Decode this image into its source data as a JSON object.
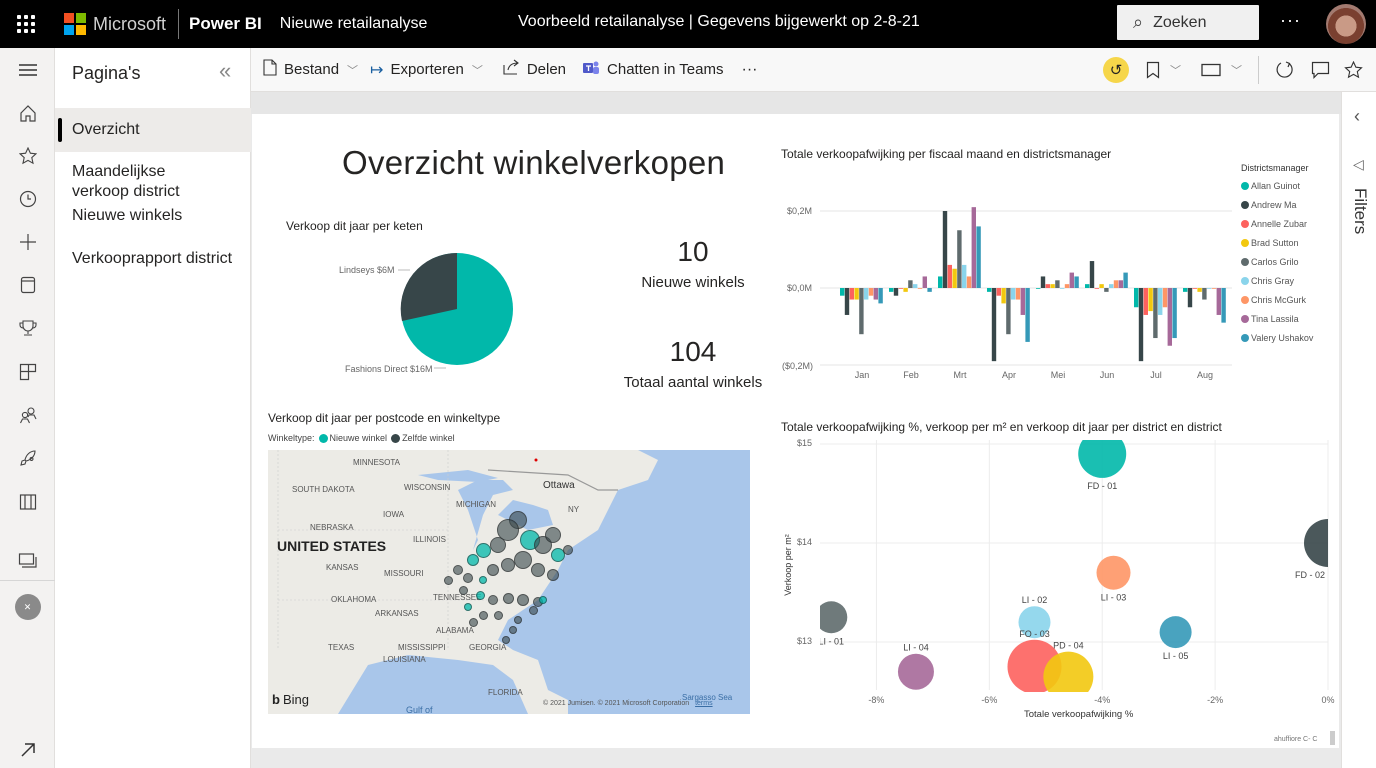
{
  "topbar": {
    "brand": "Microsoft",
    "product": "Power BI",
    "report_name": "Nieuwe retailanalyse",
    "center_title": "Voorbeeld retailanalyse  |  Gegevens bijgewerkt op 2-8-21",
    "search_placeholder": "Zoeken",
    "more": "···"
  },
  "rail": {
    "items": [
      "menu-icon",
      "home-icon",
      "star-icon",
      "clock-icon",
      "plus-icon",
      "database-icon",
      "trophy-icon",
      "dashboard-icon",
      "people-icon",
      "rocket-icon",
      "book-icon",
      "workspaces-icon",
      "workspace-avatar-icon"
    ],
    "expand": "expand-icon"
  },
  "pages": {
    "title": "Pagina's",
    "items": [
      {
        "label": "Overzicht",
        "active": true
      },
      {
        "label": "Maandelijkse verkoop district"
      },
      {
        "label": "Nieuwe winkels"
      },
      {
        "label": "Verkooprapport district"
      }
    ]
  },
  "actionbar": {
    "file": "Bestand",
    "export": "Exporteren",
    "share": "Delen",
    "teams": "Chatten in Teams",
    "more": "···"
  },
  "filters": {
    "label": "Filters"
  },
  "report": {
    "title": "Overzicht winkelverkopen",
    "kpi": [
      {
        "value": "10",
        "label": "Nieuwe winkels"
      },
      {
        "value": "104",
        "label": "Totaal aantal winkels"
      }
    ],
    "map": {
      "title": "Verkoop dit jaar per postcode en winkeltype",
      "legend_title": "Winkeltype:",
      "legend": [
        {
          "label": "Nieuwe winkel",
          "color": "#01B8AA"
        },
        {
          "label": "Zelfde winkel",
          "color": "#374649"
        }
      ],
      "labels": [
        "MINNESOTA",
        "SOUTH DAKOTA",
        "WISCONSIN",
        "MICHIGAN",
        "IOWA",
        "NEBRASKA",
        "UNITED STATES",
        "ILLINOIS",
        "KANSAS",
        "MISSOURI",
        "OKLAHOMA",
        "ARKANSAS",
        "TENNESSEE",
        "ALABAMA",
        "TEXAS",
        "MISSISSIPPI",
        "GEORGIA",
        "LOUISIANA",
        "FLORIDA",
        "Ottawa",
        "NY",
        "Gulf of",
        "Sargasso Sea"
      ],
      "bing": "Bing",
      "copyright": "© 2021 Jumisen. © 2021 Microsoft Corporation",
      "terms": "terms"
    },
    "footer_tag": "ahuffiore C- C"
  },
  "chart_data": [
    {
      "type": "pie",
      "title": "Verkoop dit jaar per keten",
      "categories": [
        "Fashions Direct",
        "Lindseys"
      ],
      "values": [
        16,
        6
      ],
      "labels": [
        "Fashions Direct $16M",
        "Lindseys $6M"
      ],
      "colors": [
        "#01B8AA",
        "#374649"
      ],
      "unit": "$M"
    },
    {
      "type": "bar",
      "title": "Totale verkoopafwijking per fiscaal maand en districtsmanager",
      "categories": [
        "Jan",
        "Feb",
        "Mrt",
        "Apr",
        "Mei",
        "Jun",
        "Jul",
        "Aug"
      ],
      "yticks": [
        "$0,2M",
        "$0,0M",
        "($0,2M)"
      ],
      "ylim": [
        -0.2,
        0.2
      ],
      "legend_title": "Districtsmanager",
      "legend_position": "right",
      "series": [
        {
          "name": "Allan Guinot",
          "color": "#01B8AA",
          "values": [
            -0.02,
            -0.01,
            0.03,
            -0.01,
            0.0,
            0.01,
            -0.05,
            -0.01
          ]
        },
        {
          "name": "Andrew Ma",
          "color": "#374649",
          "values": [
            -0.07,
            -0.02,
            0.2,
            -0.19,
            0.03,
            0.07,
            -0.19,
            -0.05
          ]
        },
        {
          "name": "Annelle Zubar",
          "color": "#FD625E",
          "values": [
            -0.03,
            0.0,
            0.06,
            -0.02,
            0.01,
            0.0,
            -0.07,
            0.0
          ]
        },
        {
          "name": "Brad Sutton",
          "color": "#F2C80F",
          "values": [
            -0.03,
            -0.01,
            0.05,
            -0.04,
            0.01,
            0.01,
            -0.06,
            -0.01
          ]
        },
        {
          "name": "Carlos Grilo",
          "color": "#5F6B6D",
          "values": [
            -0.12,
            0.02,
            0.15,
            -0.12,
            0.02,
            -0.01,
            -0.13,
            -0.03
          ]
        },
        {
          "name": "Chris Gray",
          "color": "#8AD4EB",
          "values": [
            -0.03,
            0.01,
            0.06,
            -0.03,
            0.0,
            0.01,
            -0.07,
            0.0
          ]
        },
        {
          "name": "Chris McGurk",
          "color": "#FE9666",
          "values": [
            -0.02,
            0.0,
            0.03,
            -0.03,
            0.01,
            0.02,
            -0.05,
            0.0
          ]
        },
        {
          "name": "Tina Lassila",
          "color": "#A66999",
          "values": [
            -0.03,
            0.03,
            0.21,
            -0.07,
            0.04,
            0.02,
            -0.15,
            -0.07
          ]
        },
        {
          "name": "Valery Ushakov",
          "color": "#3599B8",
          "values": [
            -0.04,
            -0.01,
            0.16,
            -0.14,
            0.03,
            0.04,
            -0.13,
            -0.09
          ]
        }
      ]
    },
    {
      "type": "scatter",
      "title": "Totale verkoopafwijking %, verkoop per m² en verkoop dit jaar per district en district",
      "xlabel": "Totale verkoopafwijking %",
      "ylabel": "Verkoop per m²",
      "xticks": [
        "-8%",
        "-6%",
        "-4%",
        "-2%",
        "0%"
      ],
      "yticks": [
        "$15",
        "$14",
        "$13"
      ],
      "xlim": [
        -9,
        0
      ],
      "ylim": [
        12.6,
        15
      ],
      "points": [
        {
          "label": "FD - 01",
          "x": -4.0,
          "y": 14.9,
          "size": 48,
          "color": "#01B8AA"
        },
        {
          "label": "FD - 02",
          "x": 0.0,
          "y": 14.0,
          "size": 48,
          "color": "#374649"
        },
        {
          "label": "LI - 03",
          "x": -3.8,
          "y": 13.7,
          "size": 34,
          "color": "#FE9666"
        },
        {
          "label": "LI - 01",
          "x": -8.8,
          "y": 13.25,
          "size": 32,
          "color": "#5F6B6D"
        },
        {
          "label": "LI - 02",
          "x": -5.2,
          "y": 13.2,
          "size": 32,
          "color": "#8AD4EB"
        },
        {
          "label": "LI - 05",
          "x": -2.7,
          "y": 13.1,
          "size": 32,
          "color": "#3599B8"
        },
        {
          "label": "LI - 04",
          "x": -7.3,
          "y": 12.7,
          "size": 36,
          "color": "#A66999"
        },
        {
          "label": "FO - 03",
          "x": -5.2,
          "y": 12.75,
          "size": 54,
          "color": "#FD625E"
        },
        {
          "label": "PD - 04",
          "x": -4.6,
          "y": 12.65,
          "size": 50,
          "color": "#F2C80F"
        }
      ]
    }
  ]
}
